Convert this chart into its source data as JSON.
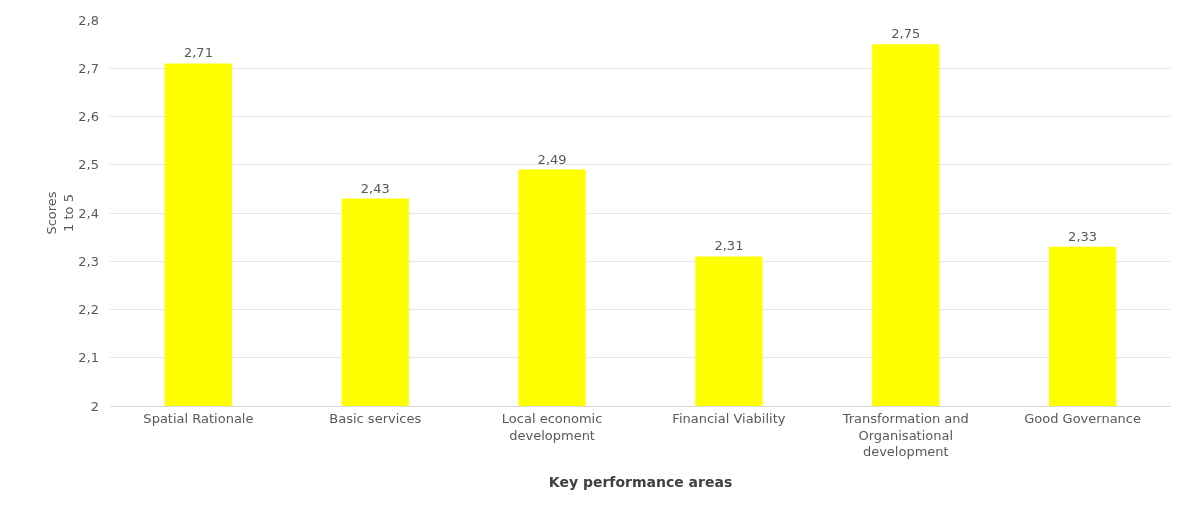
{
  "chart_data": {
    "type": "bar",
    "categories": [
      "Spatial Rationale",
      "Basic services",
      "Local economic development",
      "Financial Viability",
      "Transformation and Organisational development",
      "Good Governance"
    ],
    "values": [
      2.71,
      2.43,
      2.49,
      2.31,
      2.75,
      2.33
    ],
    "value_labels": [
      "2,71",
      "2,43",
      "2,49",
      "2,31",
      "2,75",
      "2,33"
    ],
    "color": "#ffff00",
    "xlabel": "Key performance areas",
    "ylabel": "Scores\n1 to 5",
    "ylim": [
      2,
      2.8
    ],
    "yticks": [
      2,
      {
        "value": 2.1,
        "label": "2,1"
      },
      {
        "value": 2.2,
        "label": "2,2"
      },
      {
        "value": 2.3,
        "label": "2,3"
      },
      {
        "value": 2.4,
        "label": "2,4"
      },
      {
        "value": 2.5,
        "label": "2,5"
      },
      {
        "value": 2.6,
        "label": "2,6"
      },
      {
        "value": 2.7,
        "label": "2,7"
      },
      {
        "value": 2.8,
        "label": "2,8"
      }
    ],
    "grid": "y"
  }
}
